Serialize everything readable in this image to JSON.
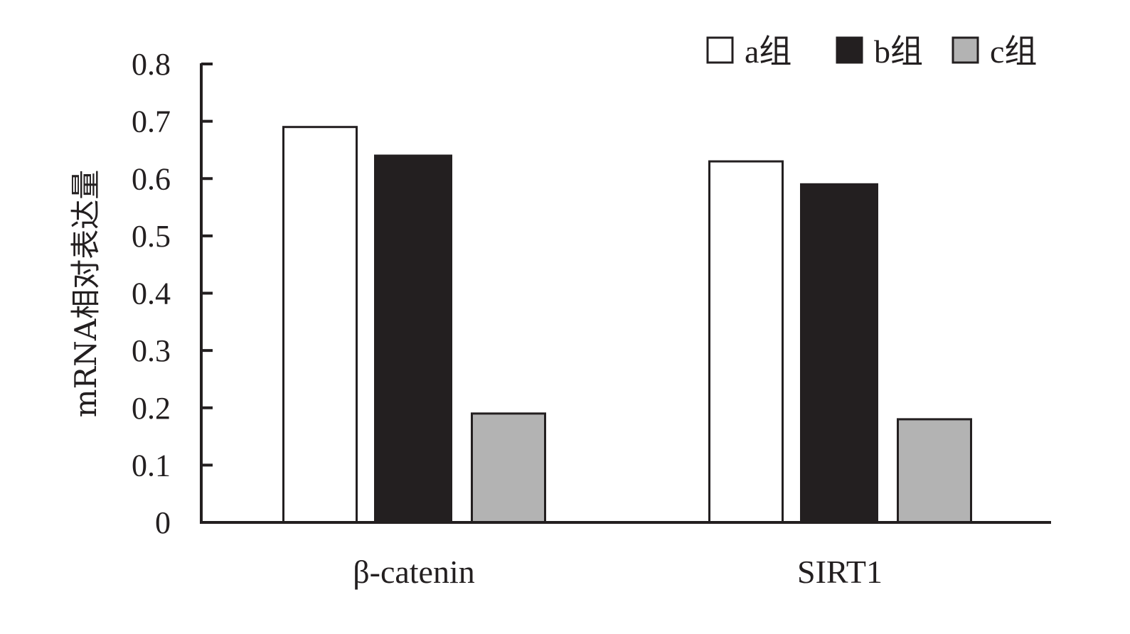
{
  "chart_data": {
    "type": "bar",
    "title": "",
    "xlabel": "",
    "ylabel": "mRNA相对表达量",
    "ylim": [
      0,
      0.8
    ],
    "yticks": [
      "0",
      "0.1",
      "0.2",
      "0.3",
      "0.4",
      "0.5",
      "0.6",
      "0.7",
      "0.8"
    ],
    "categories": [
      "β-catenin",
      "SIRT1"
    ],
    "series": [
      {
        "name": "a组",
        "values": [
          0.69,
          0.63
        ],
        "color": "#ffffff"
      },
      {
        "name": "b组",
        "values": [
          0.64,
          0.59
        ],
        "color": "#231f20"
      },
      {
        "name": "c组",
        "values": [
          0.19,
          0.18
        ],
        "color": "#b3b3b3"
      }
    ],
    "grid": false,
    "legend_position": "top-right"
  }
}
